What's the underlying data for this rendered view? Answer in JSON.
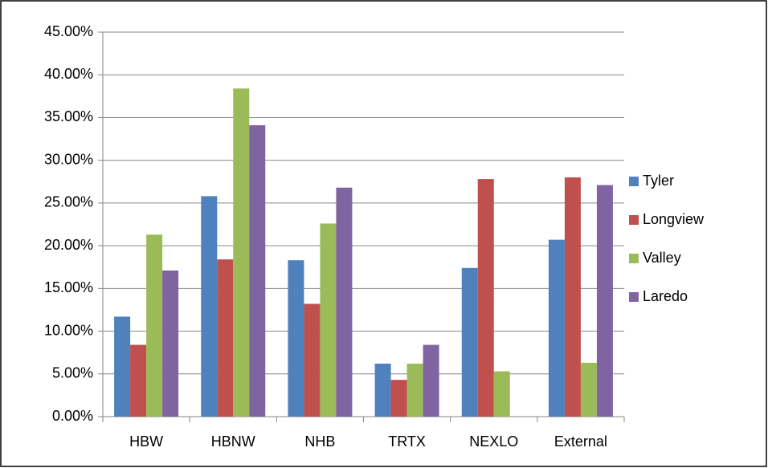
{
  "chart_data": {
    "type": "bar",
    "categories": [
      "HBW",
      "HBNW",
      "NHB",
      "TRTX",
      "NEXLO",
      "External"
    ],
    "series": [
      {
        "name": "Tyler",
        "color": "#4f81bd",
        "values": [
          11.7,
          25.8,
          18.3,
          6.2,
          17.4,
          20.7
        ]
      },
      {
        "name": "Longview",
        "color": "#c0504d",
        "values": [
          8.4,
          18.4,
          13.2,
          4.3,
          27.8,
          28.0
        ]
      },
      {
        "name": "Valley",
        "color": "#9bbb59",
        "values": [
          21.3,
          38.4,
          22.6,
          6.2,
          5.3,
          6.3
        ]
      },
      {
        "name": "Laredo",
        "color": "#8064a2",
        "values": [
          17.1,
          34.1,
          26.8,
          8.4,
          null,
          27.1
        ]
      }
    ],
    "ylim": [
      0,
      45
    ],
    "yticks": [
      {
        "value": 0,
        "label": "0.00%"
      },
      {
        "value": 5,
        "label": "5.00%"
      },
      {
        "value": 10,
        "label": "10.00%"
      },
      {
        "value": 15,
        "label": "15.00%"
      },
      {
        "value": 20,
        "label": "20.00%"
      },
      {
        "value": 25,
        "label": "25.00%"
      },
      {
        "value": 30,
        "label": "30.00%"
      },
      {
        "value": 35,
        "label": "35.00%"
      },
      {
        "value": 40,
        "label": "40.00%"
      },
      {
        "value": 45,
        "label": "45.00%"
      }
    ],
    "grid": true,
    "legend": "right"
  }
}
